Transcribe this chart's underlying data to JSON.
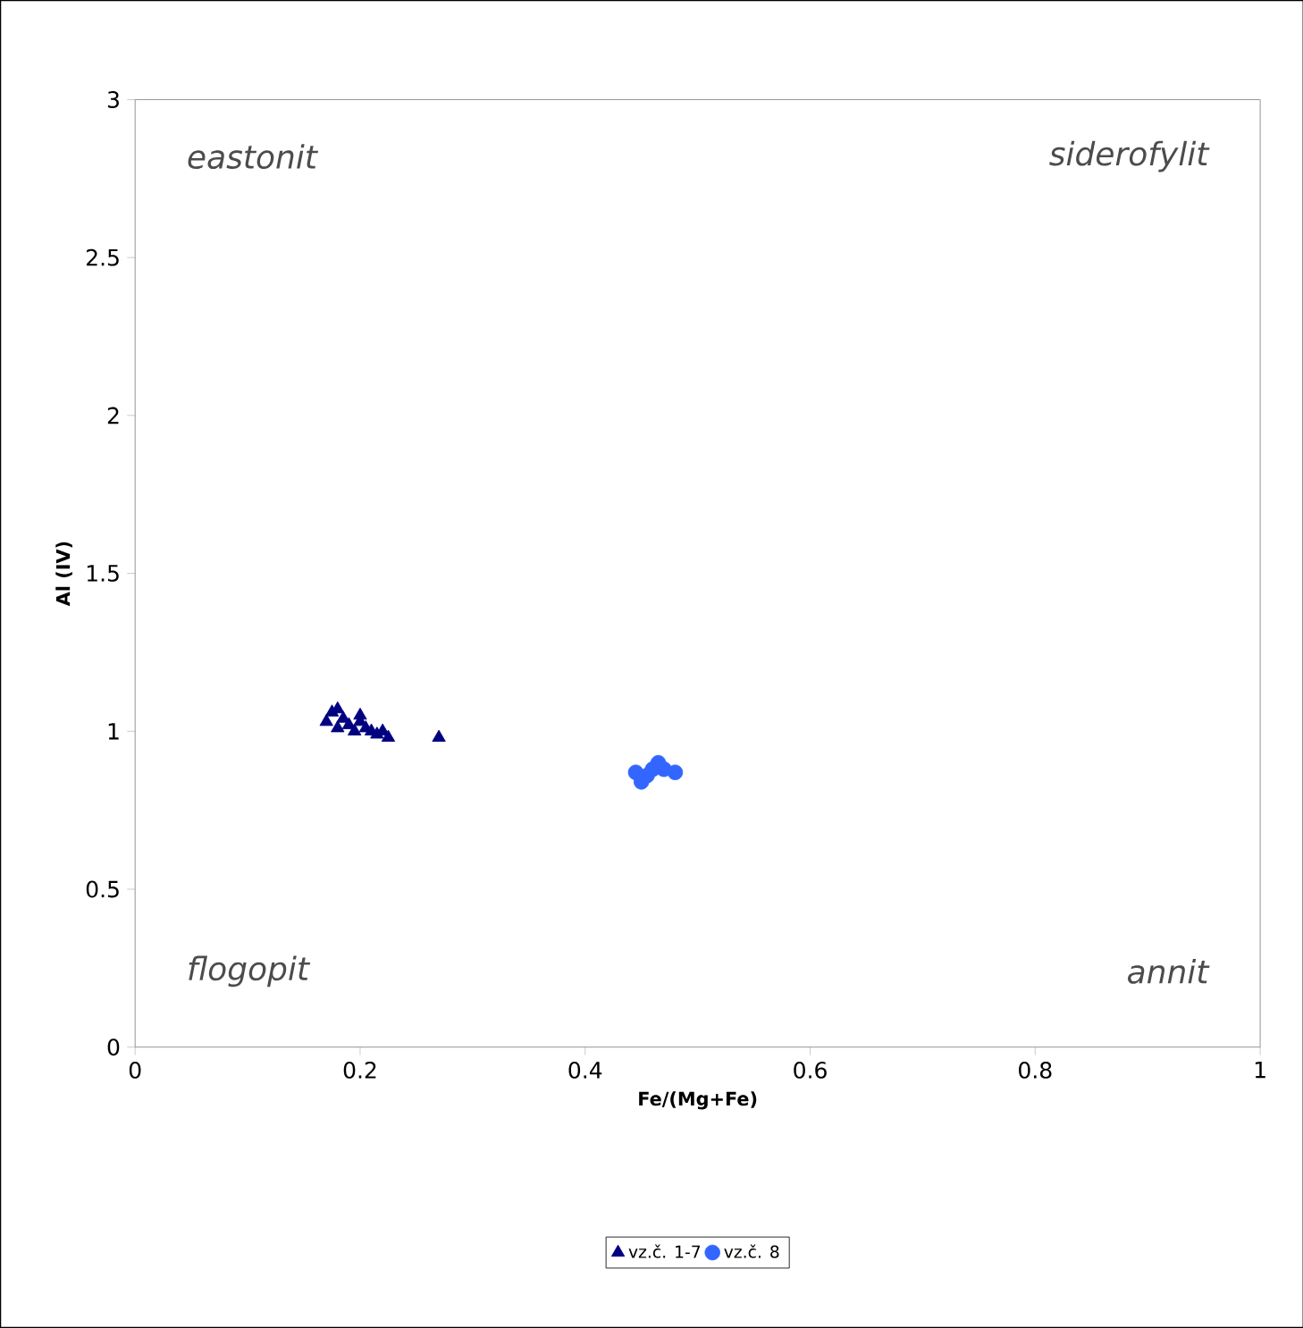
{
  "chart_data": {
    "type": "scatter",
    "xlabel": "Fe/(Mg+Fe)",
    "ylabel": "Al (IV)",
    "xlim": [
      0,
      1
    ],
    "xticks": [
      0,
      0.2,
      0.4,
      0.6,
      0.8,
      1
    ],
    "ylim": [
      0,
      3
    ],
    "yticks": [
      0,
      0.5,
      1,
      1.5,
      2,
      2.5,
      3
    ],
    "legend": "bottom",
    "grid": false,
    "annotations": [
      "eastonit",
      "siderofylit",
      "flogopit",
      "annit"
    ],
    "series": [
      {
        "name": "vz.č. 1-7",
        "color": "#000080",
        "marker": "triangle",
        "x": [
          0.17,
          0.175,
          0.18,
          0.185,
          0.19,
          0.2,
          0.205,
          0.21,
          0.215,
          0.22,
          0.225,
          0.18,
          0.195,
          0.2,
          0.27
        ],
        "values": [
          1.03,
          1.06,
          1.07,
          1.04,
          1.02,
          1.05,
          1.01,
          1.0,
          0.99,
          1.0,
          0.98,
          1.01,
          1.0,
          1.03,
          0.98
        ]
      },
      {
        "name": "vz.č. 8",
        "color": "#3366ff",
        "marker": "circle",
        "x": [
          0.445,
          0.45,
          0.455,
          0.46,
          0.465,
          0.47,
          0.48
        ],
        "values": [
          0.87,
          0.84,
          0.86,
          0.88,
          0.9,
          0.88,
          0.87
        ]
      }
    ]
  }
}
